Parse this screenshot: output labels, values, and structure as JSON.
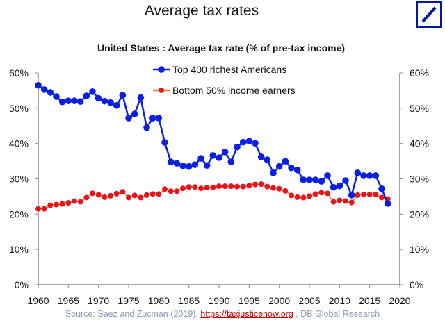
{
  "title": "Average tax rates",
  "logo": {
    "name": "deutsche-bank-logo",
    "color": "#0018a8"
  },
  "source": {
    "prefix": "Source: Saez and Zucman (2019), ",
    "link": "https://taxjusticenow.org",
    "suffix": " , DB Global Research"
  },
  "chart_data": {
    "type": "line",
    "title": "United States : Average tax rate (% of pre-tax income)",
    "xlabel": "",
    "ylabel": "",
    "xlim": [
      1960,
      2020
    ],
    "ylim": [
      0,
      60
    ],
    "x_ticks": [
      "1960",
      "1965",
      "1970",
      "1975",
      "1980",
      "1985",
      "1990",
      "1995",
      "2000",
      "2005",
      "2010",
      "2015",
      "2020"
    ],
    "y_ticks": [
      "0%",
      "10%",
      "20%",
      "30%",
      "40%",
      "50%",
      "60%"
    ],
    "y_axis_right": true,
    "grid": false,
    "legend": "top-center",
    "x_start": 1960,
    "series": [
      {
        "name": "Top 400 richest Americans",
        "color": "#0a1fe6",
        "values": [
          56.5,
          55.3,
          54.5,
          53.3,
          51.8,
          52.1,
          52.1,
          51.9,
          53.5,
          54.7,
          52.8,
          52.0,
          51.6,
          50.8,
          53.7,
          47.2,
          48.4,
          53.0,
          44.5,
          47.2,
          47.2,
          40.3,
          34.8,
          34.4,
          33.7,
          33.5,
          34.0,
          35.8,
          33.8,
          36.6,
          36.0,
          37.6,
          34.8,
          39.0,
          40.4,
          40.7,
          40.1,
          36.2,
          35.4,
          31.7,
          33.5,
          35.0,
          33.1,
          32.5,
          29.7,
          29.7,
          29.7,
          29.3,
          30.9,
          27.6,
          28.0,
          29.5,
          25.4,
          31.7,
          30.9,
          30.9,
          30.9,
          27.2,
          23.0
        ]
      },
      {
        "name": "Bottom 50% income earners",
        "color": "#e8131b",
        "line_color": "#e87a2c",
        "values": [
          21.5,
          21.5,
          22.5,
          22.7,
          22.9,
          23.2,
          23.7,
          23.5,
          24.7,
          25.9,
          25.5,
          24.8,
          25.2,
          25.8,
          26.3,
          24.7,
          25.3,
          24.7,
          25.4,
          25.7,
          25.7,
          27.1,
          26.5,
          26.5,
          27.3,
          27.7,
          27.7,
          27.3,
          27.5,
          27.6,
          27.9,
          27.9,
          27.9,
          27.8,
          27.8,
          28.1,
          28.4,
          28.5,
          27.8,
          27.4,
          27.2,
          26.6,
          25.3,
          24.8,
          24.7,
          25.1,
          25.7,
          26.1,
          25.9,
          23.5,
          23.9,
          23.7,
          23.3,
          25.4,
          25.6,
          25.6,
          25.6,
          24.7,
          24.3
        ]
      }
    ]
  }
}
